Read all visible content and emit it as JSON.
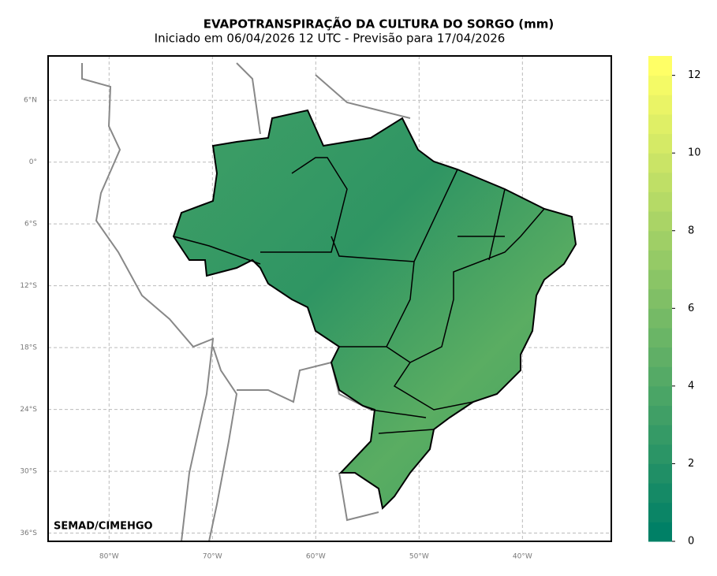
{
  "map": {
    "title": "EVAPOTRANSPIRAÇÃO DA CULTURA DO SORGO (mm)",
    "subtitle": "Iniciado em 06/04/2026 12 UTC - Previsão para 17/04/2026",
    "credit": "SEMAD/CIMEHGO",
    "xlim": [
      -85.9,
      -31.4
    ],
    "ylim": [
      -36.8,
      10.3
    ],
    "xticks": [
      {
        "value": -80,
        "label": "80°W"
      },
      {
        "value": -70,
        "label": "70°W"
      },
      {
        "value": -60,
        "label": "60°W"
      },
      {
        "value": -50,
        "label": "50°W"
      },
      {
        "value": -40,
        "label": "40°W"
      }
    ],
    "yticks": [
      {
        "value": 6,
        "label": "6°N"
      },
      {
        "value": 0,
        "label": "0°"
      },
      {
        "value": -6,
        "label": "6°S"
      },
      {
        "value": -12,
        "label": "12°S"
      },
      {
        "value": -18,
        "label": "18°S"
      },
      {
        "value": -24,
        "label": "24°S"
      },
      {
        "value": -30,
        "label": "30°S"
      },
      {
        "value": -36,
        "label": "36°S"
      }
    ],
    "grid": true,
    "colorbar": {
      "colormap": "summer",
      "clim": [
        0,
        12.5
      ],
      "level_step": 0.5,
      "ticks": [
        0,
        2,
        4,
        6,
        8,
        10,
        12
      ]
    }
  }
}
